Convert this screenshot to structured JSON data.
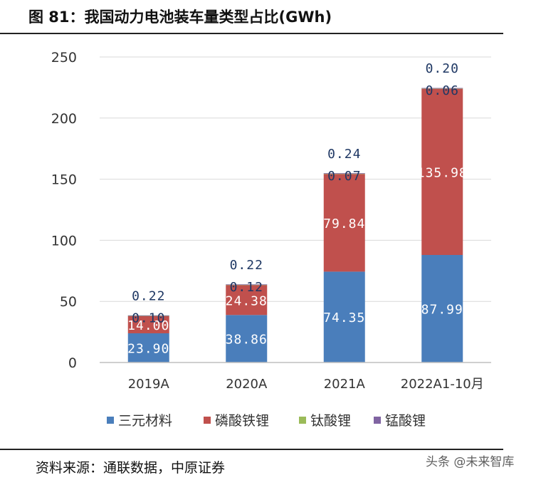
{
  "header": {
    "title": "图 81：我国动力电池装车量类型占比(GWh)"
  },
  "footer": {
    "source": "资料来源：通联数据，中原证券",
    "watermark": "头条 @未来智库"
  },
  "colors": {
    "ncm": "#4a7ebb",
    "lfp": "#c0504d",
    "lto": "#9bbb59",
    "lmo": "#8064a2",
    "grid": "#d9d9d9",
    "axis": "#bfbfbf"
  },
  "chart_data": {
    "type": "bar",
    "stacked": true,
    "title": "我国动力电池装车量类型占比(GWh)",
    "categories": [
      "2019A",
      "2020A",
      "2021A",
      "2022A1-10月"
    ],
    "ylim": [
      0,
      250
    ],
    "yticks": [
      0,
      50,
      100,
      150,
      200,
      250
    ],
    "grid": true,
    "legend_position": "bottom",
    "series": [
      {
        "name": "三元材料",
        "color_key": "ncm",
        "values": [
          23.9,
          38.86,
          74.35,
          87.99
        ],
        "labels": [
          "23.90",
          "38.86",
          "74.35",
          "87.99"
        ]
      },
      {
        "name": "磷酸铁锂",
        "color_key": "lfp",
        "values": [
          14.0,
          24.38,
          79.84,
          135.98
        ],
        "labels": [
          "14.00",
          "24.38",
          "79.84",
          "135.98"
        ]
      },
      {
        "name": "钛酸锂",
        "color_key": "lto",
        "values": [
          0.22,
          0.22,
          0.24,
          0.2
        ],
        "labels": [
          "0.22",
          "0.22",
          "0.24",
          "0.20"
        ]
      },
      {
        "name": "锰酸锂",
        "color_key": "lmo",
        "values": [
          0.1,
          0.12,
          0.07,
          0.06
        ],
        "labels": [
          "0.10",
          "0.12",
          "0.07",
          "0.06"
        ]
      }
    ]
  }
}
